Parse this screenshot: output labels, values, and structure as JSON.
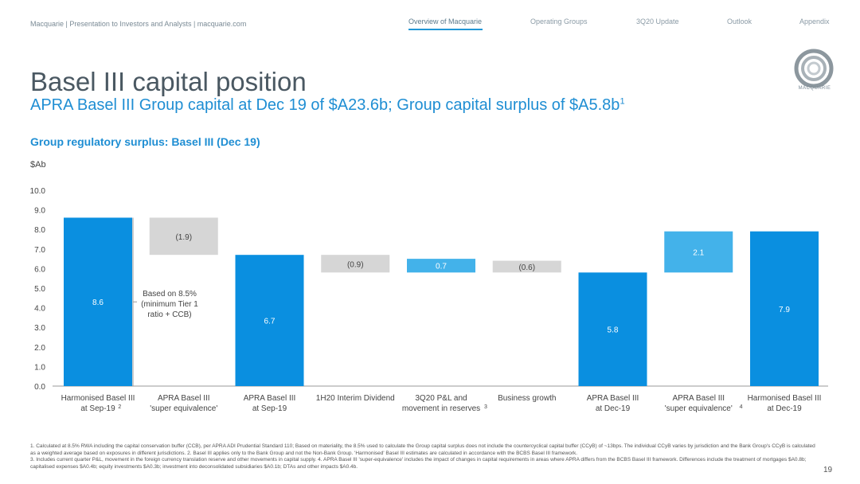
{
  "header": {
    "left_text": "Macquarie  |  Presentation to Investors and Analysts  |  macquarie.com"
  },
  "nav": {
    "items": [
      {
        "label": "Overview of Macquarie",
        "active": true
      },
      {
        "label": "Operating Groups",
        "active": false
      },
      {
        "label": "3Q20 Update",
        "active": false
      },
      {
        "label": "Outlook",
        "active": false
      },
      {
        "label": "Appendix",
        "active": false
      }
    ]
  },
  "logo": {
    "text": "MACQUARIE"
  },
  "title": "Basel III capital position",
  "subtitle": "APRA Basel III Group capital at Dec 19 of $A23.6b; Group capital surplus of $A5.8b",
  "subtitle_sup": "1",
  "section_title": "Group regulatory surplus: Basel III (Dec 19)",
  "unit_label": "$Ab",
  "chart_data": {
    "type": "bar",
    "subtype": "waterfall",
    "ylim": [
      0,
      10
    ],
    "yticks": [
      "0.0",
      "1.0",
      "2.0",
      "3.0",
      "4.0",
      "5.0",
      "6.0",
      "7.0",
      "8.0",
      "9.0",
      "10.0"
    ],
    "grid": false,
    "colors": {
      "total": "#0a8fe0",
      "increase": "#43b2ea",
      "decrease": "#d6d6d6"
    },
    "bars": [
      {
        "category": [
          "Harmonised Basel III",
          "at Sep-19"
        ],
        "sup": "2",
        "label": "8.6",
        "start": 0,
        "end": 8.6,
        "kind": "total"
      },
      {
        "category": [
          "APRA Basel III",
          "'super equivalence'"
        ],
        "sup": "",
        "label": "(1.9)",
        "start": 6.7,
        "end": 8.6,
        "kind": "decrease"
      },
      {
        "category": [
          "APRA Basel III",
          "at Sep-19"
        ],
        "sup": "",
        "label": "6.7",
        "start": 0,
        "end": 6.7,
        "kind": "total"
      },
      {
        "category": [
          "1H20 Interim Dividend"
        ],
        "sup": "",
        "label": "(0.9)",
        "start": 5.8,
        "end": 6.7,
        "kind": "decrease"
      },
      {
        "category": [
          "3Q20 P&L and",
          "movement in reserves"
        ],
        "sup": "3",
        "label": "0.7",
        "start": 5.8,
        "end": 6.5,
        "kind": "increase"
      },
      {
        "category": [
          "Business growth"
        ],
        "sup": "",
        "label": "(0.6)",
        "start": 5.8,
        "end": 6.4,
        "kind": "decrease"
      },
      {
        "category": [
          "APRA Basel III",
          "at Dec-19"
        ],
        "sup": "",
        "label": "5.8",
        "start": 0,
        "end": 5.8,
        "kind": "total"
      },
      {
        "category": [
          "APRA Basel III",
          "'super equivalence'"
        ],
        "sup": "4",
        "label": "2.1",
        "start": 5.8,
        "end": 7.9,
        "kind": "increase"
      },
      {
        "category": [
          "Harmonised Basel III",
          "at Dec-19"
        ],
        "sup": "",
        "label": "7.9",
        "start": 0,
        "end": 7.9,
        "kind": "total"
      }
    ],
    "annotation": [
      "Based on 8.5%",
      "(minimum Tier 1",
      "ratio + CCB)"
    ]
  },
  "footnotes": [
    "1. Calculated at 8.5% RWA including the capital conservation buffer (CCB), per APRA ADI Prudential Standard 110; Based on materiality, the 8.5% used to calculate the Group capital surplus does not include the countercyclical capital buffer (CCyB) of ~13bps. The individual CCyB varies by jurisdiction and the Bank Group's CCyB is calculated as a weighted average based on exposures in different jurisdictions.  2. Basel III applies only to the Bank Group and not the Non-Bank Group. 'Harmonised' Basel III estimates are calculated in accordance with the BCBS Basel III framework.",
    "3. Includes current quarter P&L, movement in the foreign currency translation reserve and other movements in capital supply.  4. APRA Basel III 'super-equivalence' includes the impact of changes in capital requirements in areas where APRA differs from the BCBS Basel III framework. Differences include the treatment of mortgages $A0.8b; capitalised expenses $A0.4b; equity investments $A0.3b; investment into deconsolidated subsidiaries $A0.1b; DTAs and other impacts $A0.4b."
  ],
  "page_number": "19"
}
